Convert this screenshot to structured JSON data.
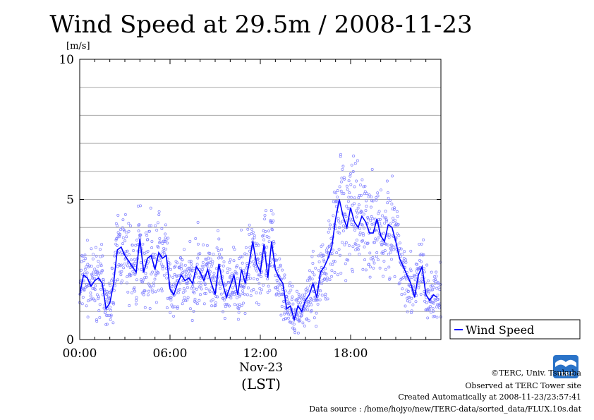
{
  "chart_data": {
    "type": "line",
    "title": "Wind Speed at 29.5m / 2008-11-23",
    "ylabel": "[m/s]",
    "xlabel_date": "Nov-23",
    "xlabel_tz": "(LST)",
    "ylim": [
      0,
      10
    ],
    "xlim_hours": [
      0,
      24
    ],
    "y_ticks": [
      "0",
      "5",
      "10"
    ],
    "x_ticks": [
      {
        "hour": 0,
        "label": "00:00"
      },
      {
        "hour": 6,
        "label": "06:00"
      },
      {
        "hour": 12,
        "label": "12:00"
      },
      {
        "hour": 18,
        "label": "18:00"
      }
    ],
    "grid": true,
    "legend_position": "bottom-right-outside",
    "series": [
      {
        "name": "Wind Speed",
        "color": "#0000ff",
        "scatter_color": "#8080ff",
        "x": [
          0.0,
          0.25,
          0.5,
          0.75,
          1.0,
          1.25,
          1.5,
          1.75,
          2.0,
          2.25,
          2.5,
          2.75,
          3.0,
          3.25,
          3.5,
          3.75,
          4.0,
          4.25,
          4.5,
          4.75,
          5.0,
          5.25,
          5.5,
          5.75,
          6.0,
          6.25,
          6.5,
          6.75,
          7.0,
          7.25,
          7.5,
          7.75,
          8.0,
          8.25,
          8.5,
          8.75,
          9.0,
          9.25,
          9.5,
          9.75,
          10.0,
          10.25,
          10.5,
          10.75,
          11.0,
          11.25,
          11.5,
          11.75,
          12.0,
          12.25,
          12.5,
          12.75,
          13.0,
          13.25,
          13.5,
          13.75,
          14.0,
          14.25,
          14.5,
          14.75,
          15.0,
          15.25,
          15.5,
          15.75,
          16.0,
          16.25,
          16.5,
          16.75,
          17.0,
          17.25,
          17.5,
          17.75,
          18.0,
          18.25,
          18.5,
          18.75,
          19.0,
          19.25,
          19.5,
          19.75,
          20.0,
          20.25,
          20.5,
          20.75,
          21.0,
          21.25,
          21.5,
          21.75,
          22.0,
          22.25,
          22.5,
          22.75,
          23.0,
          23.25,
          23.5,
          23.75
        ],
        "values": [
          1.6,
          2.3,
          2.2,
          1.9,
          2.1,
          2.2,
          2.0,
          1.1,
          1.3,
          2.0,
          3.2,
          3.3,
          3.0,
          2.8,
          2.6,
          2.4,
          3.6,
          2.4,
          2.9,
          3.0,
          2.5,
          3.1,
          2.9,
          3.0,
          1.8,
          1.6,
          2.0,
          2.3,
          2.1,
          2.2,
          2.0,
          2.6,
          2.4,
          2.1,
          2.5,
          2.0,
          1.6,
          2.7,
          2.0,
          1.5,
          1.9,
          2.3,
          1.6,
          2.5,
          2.0,
          2.7,
          3.5,
          2.7,
          2.4,
          3.4,
          2.2,
          3.5,
          2.5,
          2.2,
          2.0,
          1.1,
          1.2,
          0.7,
          1.2,
          1.0,
          1.4,
          1.6,
          2.0,
          1.5,
          2.4,
          2.6,
          2.9,
          3.3,
          4.3,
          5.0,
          4.4,
          4.0,
          4.7,
          4.2,
          4.0,
          4.4,
          4.2,
          3.8,
          3.8,
          4.3,
          3.7,
          3.5,
          4.1,
          4.0,
          3.5,
          2.9,
          2.6,
          2.3,
          2.0,
          1.5,
          2.3,
          2.6,
          1.6,
          1.4,
          1.6,
          1.5
        ]
      }
    ]
  },
  "credits": {
    "copyright": "©TERC, Univ. Tsukuba",
    "observed": "Observed at TERC Tower site",
    "created": "Created Automatically at 2008-11-23/23:57:41",
    "source": "Data source : /home/hojyo/new/TERC-data/sorted_data/FLUX.10s.dat"
  },
  "logo_text": "TERC"
}
